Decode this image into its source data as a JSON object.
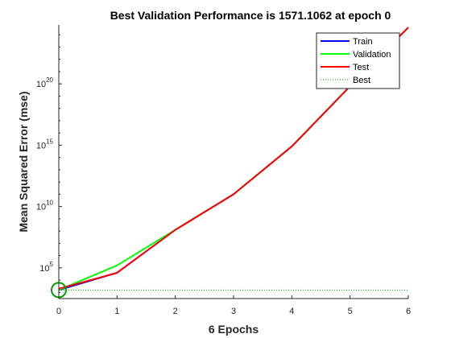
{
  "chart_data": {
    "type": "line",
    "title": "Best Validation Performance is 1571.1062 at epoch 0",
    "xlabel": "6 Epochs",
    "ylabel": "Mean Squared Error  (mse)",
    "xlim": [
      0,
      6
    ],
    "ylim_log10": [
      2.5,
      24.8
    ],
    "yscale": "log",
    "x_ticks": [
      "0",
      "1",
      "2",
      "3",
      "4",
      "5",
      "6"
    ],
    "y_ticks": [
      {
        "base": "10",
        "exp": "5",
        "log10": 5
      },
      {
        "base": "10",
        "exp": "10",
        "log10": 10
      },
      {
        "base": "10",
        "exp": "15",
        "log10": 15
      },
      {
        "base": "10",
        "exp": "20",
        "log10": 20
      }
    ],
    "legend_position": "top-right",
    "series": [
      {
        "name": "Train",
        "color": "#0000ff",
        "x": [
          0,
          1,
          2,
          3,
          4,
          5,
          6
        ],
        "log10_y": [
          3.2,
          4.6,
          8.1,
          11.0,
          14.9,
          19.8,
          24.6
        ]
      },
      {
        "name": "Validation",
        "color": "#00ff00",
        "x": [
          0,
          1,
          2,
          3,
          4,
          5,
          6
        ],
        "log10_y": [
          3.2,
          5.2,
          8.1,
          11.0,
          14.9,
          19.8,
          24.6
        ]
      },
      {
        "name": "Test",
        "color": "#ff0000",
        "x": [
          0,
          1,
          2,
          3,
          4,
          5,
          6
        ],
        "log10_y": [
          3.3,
          4.6,
          8.1,
          11.0,
          14.9,
          19.8,
          24.6
        ]
      }
    ],
    "best": {
      "name": "Best",
      "color": "#00a000",
      "epoch": 0,
      "value": 1571.1062,
      "log10_y": 3.196
    }
  }
}
